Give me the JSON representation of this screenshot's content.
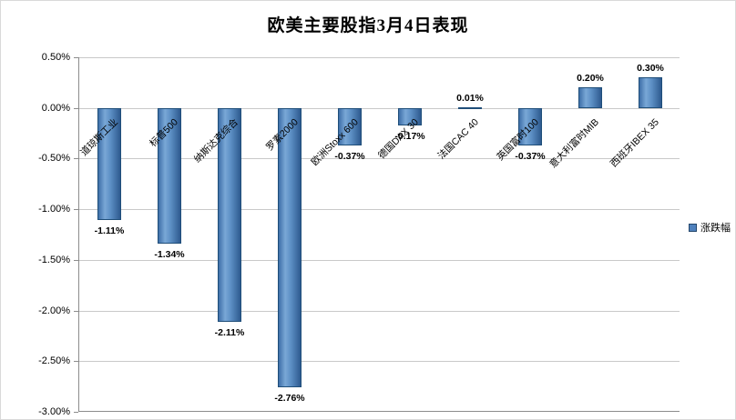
{
  "title": "欧美主要股指3月4日表现",
  "legend": {
    "label": "涨跌幅",
    "color": "#4f81bd"
  },
  "chart_data": {
    "type": "bar",
    "title": "欧美主要股指3月4日表现",
    "categories": [
      "道琼斯工业",
      "标普500",
      "纳斯达克综合",
      "罗素2000",
      "欧洲Stoxx 600",
      "德国DAX 30",
      "法国CAC 40",
      "英国富时100",
      "意大利富时MIB",
      "西班牙IBEX 35"
    ],
    "series": [
      {
        "name": "涨跌幅",
        "values": [
          -1.11,
          -1.34,
          -2.11,
          -2.76,
          -0.37,
          -0.17,
          0.01,
          -0.37,
          0.2,
          0.3
        ],
        "labels": [
          "-1.11%",
          "-1.34%",
          "-2.11%",
          "-2.76%",
          "-0.37%",
          "-0.17%",
          "0.01%",
          "-0.37%",
          "0.20%",
          "0.30%"
        ]
      }
    ],
    "xlabel": "",
    "ylabel": "",
    "ylim": [
      -3.0,
      0.5
    ],
    "ytick_step": 0.5,
    "ytick_labels": [
      "0.50%",
      "0.00%",
      "-0.50%",
      "-1.00%",
      "-1.50%",
      "-2.00%",
      "-2.50%",
      "-3.00%"
    ],
    "grid": true,
    "legend_position": "right",
    "bar_color": "#4f81bd"
  }
}
